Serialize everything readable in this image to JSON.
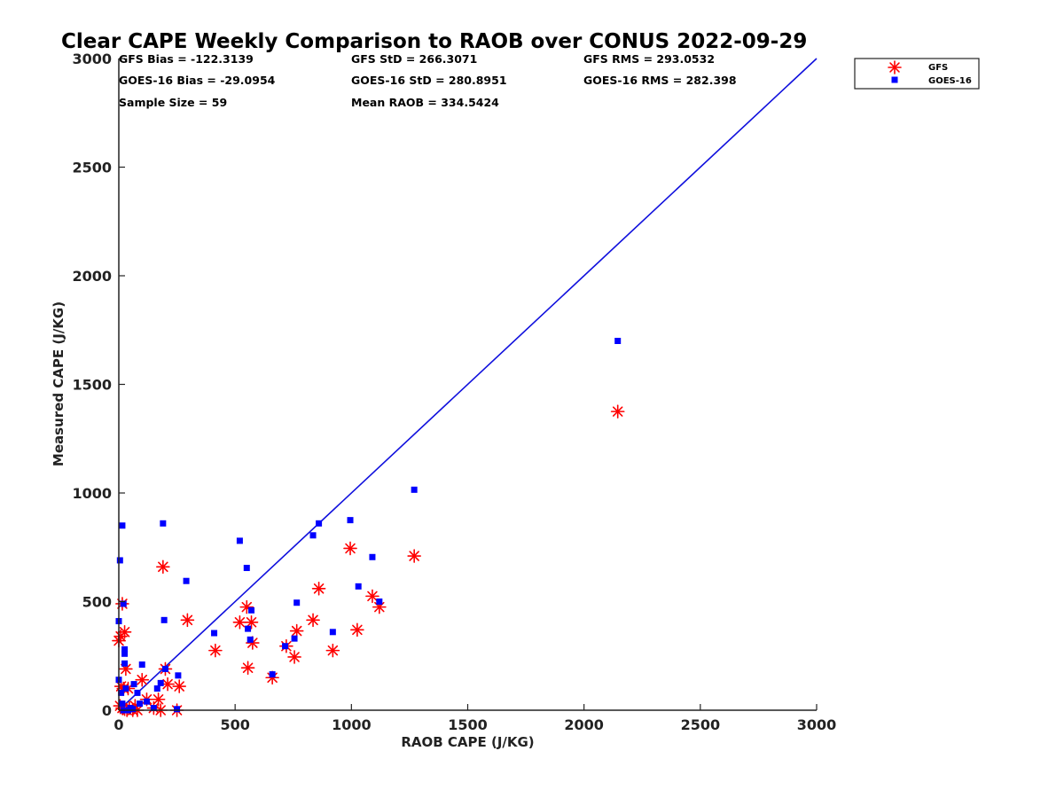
{
  "chart_data": {
    "type": "scatter",
    "title": "Clear CAPE Weekly Comparison to RAOB over CONUS 2022-09-29",
    "xlabel": "RAOB CAPE (J/KG)",
    "ylabel": "Measured CAPE (J/KG)",
    "xlim": [
      0,
      3000
    ],
    "ylim": [
      0,
      3000
    ],
    "xticks": [
      "0",
      "500",
      "1000",
      "1500",
      "2000",
      "2500",
      "3000"
    ],
    "yticks": [
      "0",
      "500",
      "1000",
      "1500",
      "2000",
      "2500",
      "3000"
    ],
    "grid": false,
    "legend_position": "top-right",
    "stats": [
      [
        "GFS Bias = -122.3139",
        "GFS StD = 266.3071",
        "GFS RMS = 293.0532"
      ],
      [
        "GOES-16 Bias = -29.0954",
        "GOES-16 StD = 280.8951",
        "GOES-16 RMS = 282.398"
      ],
      [
        "Sample Size = 59",
        "Mean RAOB = 334.5424",
        ""
      ]
    ],
    "reference_line": {
      "x": [
        0,
        3000
      ],
      "y": [
        0,
        3000
      ],
      "color": "#1010dd"
    },
    "series": [
      {
        "name": "GFS",
        "marker": "asterisk",
        "color": "#ff0000",
        "points": [
          [
            0,
            320
          ],
          [
            8,
            340
          ],
          [
            15,
            490
          ],
          [
            25,
            360
          ],
          [
            10,
            110
          ],
          [
            20,
            100
          ],
          [
            30,
            190
          ],
          [
            40,
            100
          ],
          [
            5,
            20
          ],
          [
            15,
            10
          ],
          [
            25,
            5
          ],
          [
            35,
            0
          ],
          [
            45,
            10
          ],
          [
            60,
            0
          ],
          [
            70,
            20
          ],
          [
            80,
            0
          ],
          [
            100,
            140
          ],
          [
            120,
            50
          ],
          [
            150,
            10
          ],
          [
            170,
            50
          ],
          [
            180,
            0
          ],
          [
            190,
            660
          ],
          [
            200,
            190
          ],
          [
            210,
            120
          ],
          [
            250,
            0
          ],
          [
            260,
            110
          ],
          [
            295,
            415
          ],
          [
            415,
            275
          ],
          [
            520,
            405
          ],
          [
            550,
            475
          ],
          [
            555,
            195
          ],
          [
            570,
            405
          ],
          [
            575,
            310
          ],
          [
            660,
            150
          ],
          [
            720,
            295
          ],
          [
            755,
            245
          ],
          [
            765,
            365
          ],
          [
            835,
            415
          ],
          [
            860,
            560
          ],
          [
            920,
            275
          ],
          [
            995,
            745
          ],
          [
            1025,
            370
          ],
          [
            1090,
            525
          ],
          [
            1120,
            475
          ],
          [
            1270,
            710
          ],
          [
            2145,
            1375
          ]
        ]
      },
      {
        "name": "GOES-16",
        "marker": "square",
        "color": "#0000ff",
        "points": [
          [
            0,
            410
          ],
          [
            5,
            690
          ],
          [
            15,
            850
          ],
          [
            20,
            490
          ],
          [
            0,
            140
          ],
          [
            10,
            80
          ],
          [
            15,
            30
          ],
          [
            20,
            0
          ],
          [
            25,
            215
          ],
          [
            25,
            260
          ],
          [
            25,
            280
          ],
          [
            30,
            100
          ],
          [
            40,
            0
          ],
          [
            50,
            10
          ],
          [
            60,
            5
          ],
          [
            65,
            120
          ],
          [
            80,
            80
          ],
          [
            90,
            30
          ],
          [
            100,
            210
          ],
          [
            120,
            40
          ],
          [
            150,
            10
          ],
          [
            165,
            100
          ],
          [
            180,
            125
          ],
          [
            190,
            860
          ],
          [
            195,
            415
          ],
          [
            200,
            190
          ],
          [
            255,
            160
          ],
          [
            250,
            5
          ],
          [
            290,
            595
          ],
          [
            410,
            355
          ],
          [
            520,
            780
          ],
          [
            550,
            655
          ],
          [
            555,
            375
          ],
          [
            570,
            460
          ],
          [
            565,
            325
          ],
          [
            660,
            165
          ],
          [
            715,
            295
          ],
          [
            755,
            330
          ],
          [
            765,
            495
          ],
          [
            835,
            805
          ],
          [
            860,
            860
          ],
          [
            920,
            360
          ],
          [
            995,
            875
          ],
          [
            1030,
            570
          ],
          [
            1090,
            705
          ],
          [
            1120,
            500
          ],
          [
            1270,
            1015
          ],
          [
            2145,
            1700
          ]
        ]
      }
    ]
  }
}
